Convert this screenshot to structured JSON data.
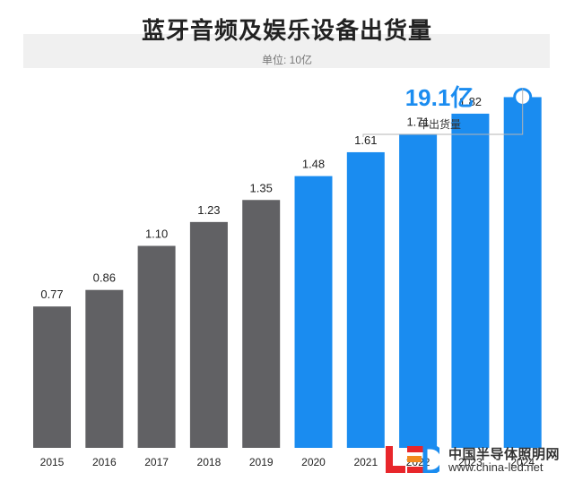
{
  "chart_data": {
    "type": "bar",
    "title": "蓝牙音频及娱乐设备出货量",
    "subtitle": "单位: 10亿",
    "categories": [
      "2015",
      "2016",
      "2017",
      "2018",
      "2019",
      "2020",
      "2021",
      "2022",
      "2023",
      "2024"
    ],
    "values": [
      0.77,
      0.86,
      1.1,
      1.23,
      1.35,
      1.48,
      1.61,
      1.71,
      1.82,
      1.91
    ],
    "value_labels": [
      "0.77",
      "0.86",
      "1.10",
      "1.23",
      "1.35",
      "1.48",
      "1.61",
      "1.71",
      "1.82",
      ""
    ],
    "colors": {
      "historical": "#616164",
      "forecast": "#1a8cf0"
    },
    "forecast_from": "2020",
    "ylim": [
      0,
      2.0
    ],
    "annotation": {
      "value": "19.1亿",
      "label": "年出货量"
    }
  },
  "watermark": {
    "name": "中国半导体照明网",
    "url": "www.china-led.net"
  },
  "accent_color": "#1a8cf0"
}
